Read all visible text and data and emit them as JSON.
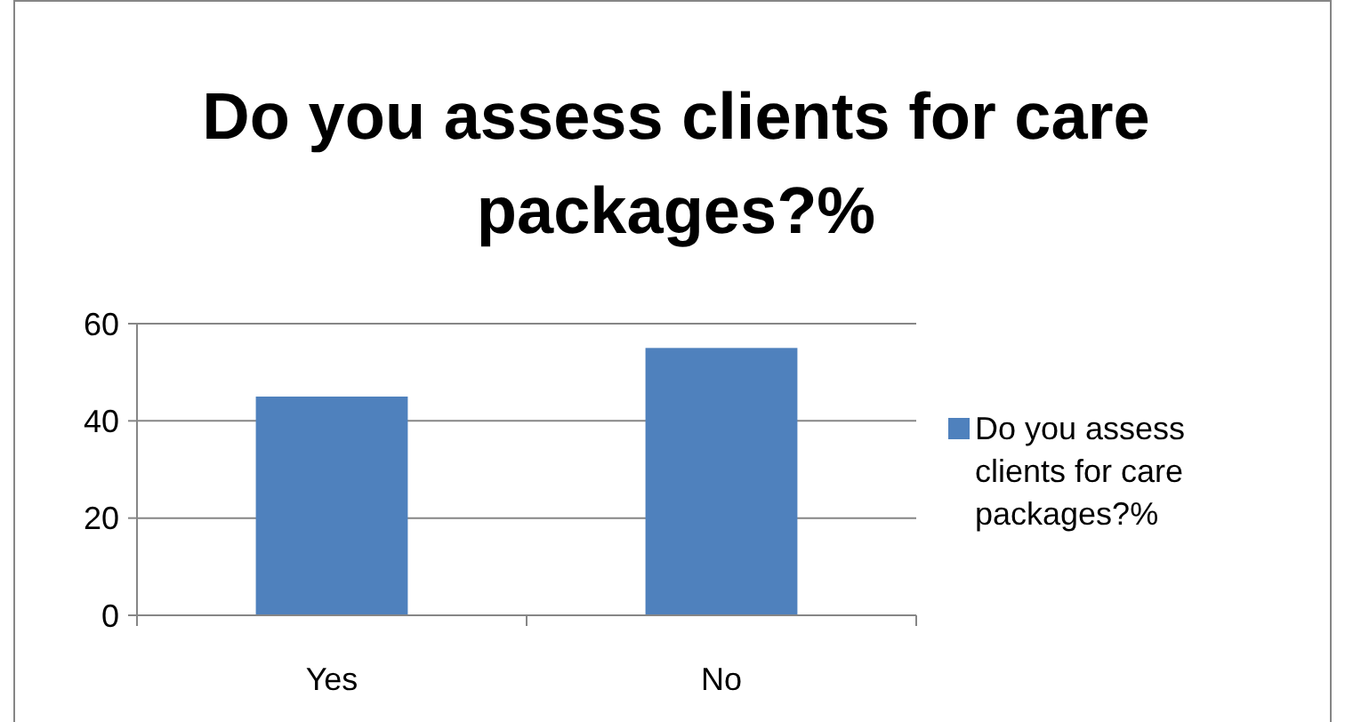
{
  "chart_data": {
    "type": "bar",
    "title": "Do you assess clients for care packages?%",
    "categories": [
      "Yes",
      "No"
    ],
    "series": [
      {
        "name": "Do you assess clients for care packages?%",
        "color": "#4f81bd",
        "values": [
          45,
          55
        ]
      }
    ],
    "ylim": [
      0,
      60
    ],
    "yticks": [
      0,
      20,
      40,
      60
    ],
    "grid": "y",
    "legend": "right"
  }
}
